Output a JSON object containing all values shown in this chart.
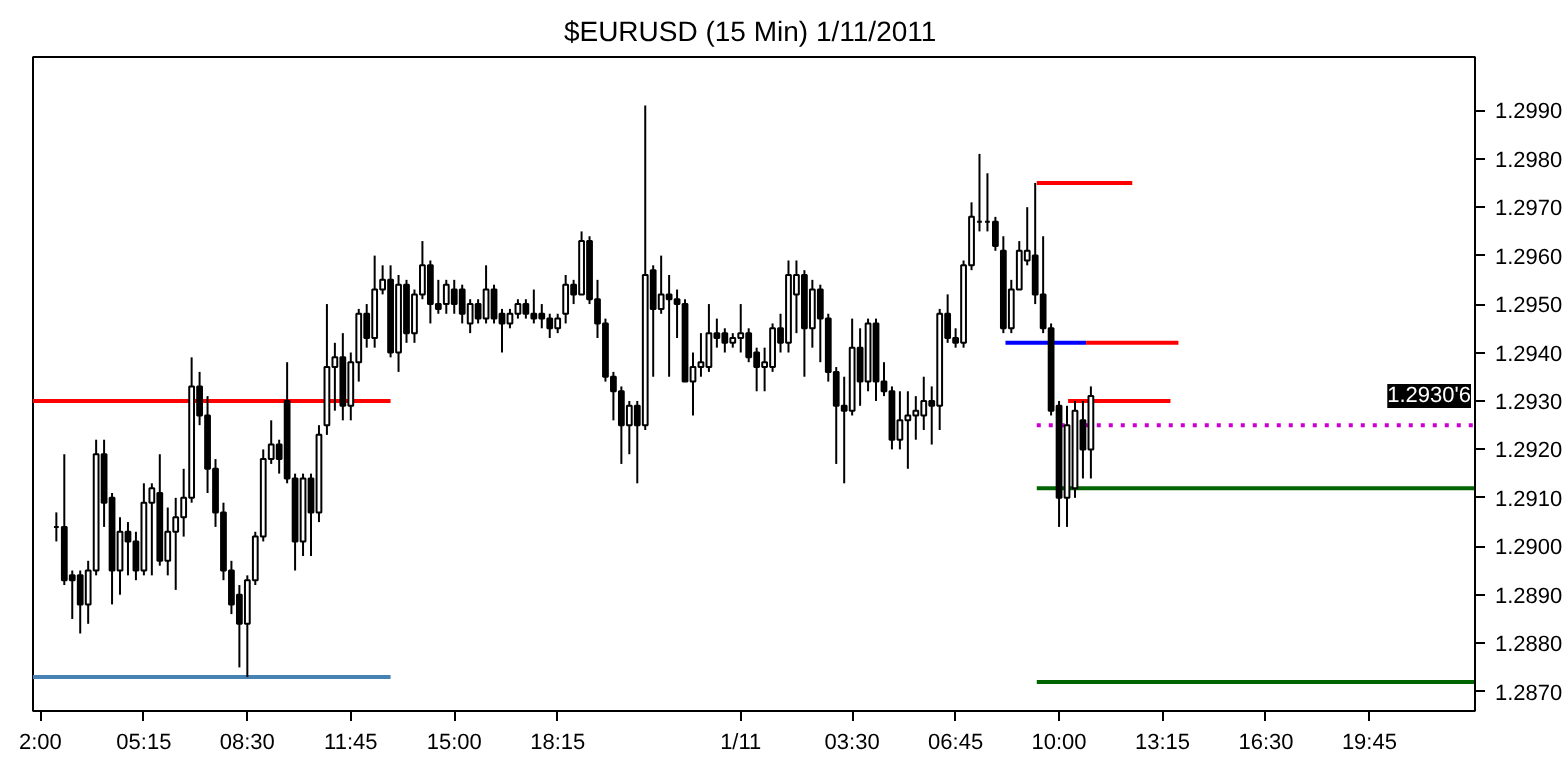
{
  "chart_data": {
    "type": "candlestick",
    "title": "$EURUSD (15 Min)  1/11/2011",
    "xlim": [
      "2011-01-10T01:46",
      "2011-01-11T23:04"
    ],
    "ylim": [
      1.2866,
      1.3001
    ],
    "xticks": [
      {
        "value": "2011-01-10T02:00",
        "label": "2:00"
      },
      {
        "value": "2011-01-10T05:15",
        "label": "05:15"
      },
      {
        "value": "2011-01-10T08:30",
        "label": "08:30"
      },
      {
        "value": "2011-01-10T11:45",
        "label": "11:45"
      },
      {
        "value": "2011-01-10T15:00",
        "label": "15:00"
      },
      {
        "value": "2011-01-10T18:15",
        "label": "18:15"
      },
      {
        "value": "2011-01-11T00:00",
        "label": "1/11"
      },
      {
        "value": "2011-01-11T03:30",
        "label": "03:30"
      },
      {
        "value": "2011-01-11T06:45",
        "label": "06:45"
      },
      {
        "value": "2011-01-11T10:00",
        "label": "10:00"
      },
      {
        "value": "2011-01-11T13:15",
        "label": "13:15"
      },
      {
        "value": "2011-01-11T16:30",
        "label": "16:30"
      },
      {
        "value": "2011-01-11T19:45",
        "label": "19:45"
      }
    ],
    "yticks": [
      {
        "value": 1.287,
        "label": "1.2870"
      },
      {
        "value": 1.288,
        "label": "1.2880"
      },
      {
        "value": 1.289,
        "label": "1.2890"
      },
      {
        "value": 1.29,
        "label": "1.2900"
      },
      {
        "value": 1.291,
        "label": "1.2910"
      },
      {
        "value": 1.292,
        "label": "1.2920"
      },
      {
        "value": 1.293,
        "label": "1.2930"
      },
      {
        "value": 1.294,
        "label": "1.2940"
      },
      {
        "value": 1.295,
        "label": "1.2950"
      },
      {
        "value": 1.296,
        "label": "1.2960"
      },
      {
        "value": 1.297,
        "label": "1.2970"
      },
      {
        "value": 1.298,
        "label": "1.2980"
      },
      {
        "value": 1.299,
        "label": "1.2990"
      }
    ],
    "x": [
      "2011-01-10T02:30",
      "2011-01-10T02:45",
      "2011-01-10T03:00",
      "2011-01-10T03:15",
      "2011-01-10T03:30",
      "2011-01-10T03:45",
      "2011-01-10T04:00",
      "2011-01-10T04:15",
      "2011-01-10T04:30",
      "2011-01-10T04:45",
      "2011-01-10T05:00",
      "2011-01-10T05:15",
      "2011-01-10T05:30",
      "2011-01-10T05:45",
      "2011-01-10T06:00",
      "2011-01-10T06:15",
      "2011-01-10T06:30",
      "2011-01-10T06:45",
      "2011-01-10T07:00",
      "2011-01-10T07:15",
      "2011-01-10T07:30",
      "2011-01-10T07:45",
      "2011-01-10T08:00",
      "2011-01-10T08:15",
      "2011-01-10T08:30",
      "2011-01-10T08:45",
      "2011-01-10T09:00",
      "2011-01-10T09:15",
      "2011-01-10T09:30",
      "2011-01-10T09:45",
      "2011-01-10T10:00",
      "2011-01-10T10:15",
      "2011-01-10T10:30",
      "2011-01-10T10:45",
      "2011-01-10T11:00",
      "2011-01-10T11:15",
      "2011-01-10T11:30",
      "2011-01-10T11:45",
      "2011-01-10T12:00",
      "2011-01-10T12:15",
      "2011-01-10T12:30",
      "2011-01-10T12:45",
      "2011-01-10T13:00",
      "2011-01-10T13:15",
      "2011-01-10T13:30",
      "2011-01-10T13:45",
      "2011-01-10T14:00",
      "2011-01-10T14:15",
      "2011-01-10T14:30",
      "2011-01-10T14:45",
      "2011-01-10T15:00",
      "2011-01-10T15:15",
      "2011-01-10T15:30",
      "2011-01-10T15:45",
      "2011-01-10T16:00",
      "2011-01-10T16:15",
      "2011-01-10T16:30",
      "2011-01-10T16:45",
      "2011-01-10T17:00",
      "2011-01-10T17:15",
      "2011-01-10T17:30",
      "2011-01-10T17:45",
      "2011-01-10T18:00",
      "2011-01-10T18:15",
      "2011-01-10T18:30",
      "2011-01-10T18:45",
      "2011-01-10T19:00",
      "2011-01-10T19:15",
      "2011-01-10T19:30",
      "2011-01-10T19:45",
      "2011-01-10T20:00",
      "2011-01-10T20:15",
      "2011-01-10T20:30",
      "2011-01-10T20:45",
      "2011-01-10T21:00",
      "2011-01-10T21:15",
      "2011-01-10T21:30",
      "2011-01-10T21:45",
      "2011-01-10T22:00",
      "2011-01-10T22:15",
      "2011-01-10T22:30",
      "2011-01-10T22:45",
      "2011-01-10T23:00",
      "2011-01-10T23:15",
      "2011-01-10T23:30",
      "2011-01-10T23:45",
      "2011-01-11T00:00",
      "2011-01-11T00:15",
      "2011-01-11T00:30",
      "2011-01-11T00:45",
      "2011-01-11T01:00",
      "2011-01-11T01:15",
      "2011-01-11T01:30",
      "2011-01-11T01:45",
      "2011-01-11T02:00",
      "2011-01-11T02:15",
      "2011-01-11T02:30",
      "2011-01-11T02:45",
      "2011-01-11T03:00",
      "2011-01-11T03:15",
      "2011-01-11T03:30",
      "2011-01-11T03:45",
      "2011-01-11T04:00",
      "2011-01-11T04:15",
      "2011-01-11T04:30",
      "2011-01-11T04:45",
      "2011-01-11T05:00",
      "2011-01-11T05:15",
      "2011-01-11T05:30",
      "2011-01-11T05:45",
      "2011-01-11T06:00",
      "2011-01-11T06:15",
      "2011-01-11T06:30",
      "2011-01-11T06:45",
      "2011-01-11T07:00",
      "2011-01-11T07:15",
      "2011-01-11T07:30",
      "2011-01-11T07:45",
      "2011-01-11T08:00",
      "2011-01-11T08:15",
      "2011-01-11T08:30",
      "2011-01-11T08:45",
      "2011-01-11T09:00",
      "2011-01-11T09:15",
      "2011-01-11T09:30",
      "2011-01-11T09:45",
      "2011-01-11T10:00",
      "2011-01-11T10:15",
      "2011-01-11T10:30",
      "2011-01-11T10:45",
      "2011-01-11T11:00"
    ],
    "ohlc": [
      [
        1.2904,
        1.2907,
        1.2901,
        1.2904
      ],
      [
        1.2904,
        1.2919,
        1.2892,
        1.2893
      ],
      [
        1.2894,
        1.2895,
        1.2885,
        1.2893
      ],
      [
        1.2894,
        1.2895,
        1.2882,
        1.2888
      ],
      [
        1.2888,
        1.2897,
        1.2884,
        1.2895
      ],
      [
        1.2895,
        1.2922,
        1.2894,
        1.2919
      ],
      [
        1.2919,
        1.2922,
        1.2904,
        1.2909
      ],
      [
        1.291,
        1.2911,
        1.2888,
        1.2895
      ],
      [
        1.2895,
        1.2906,
        1.289,
        1.2903
      ],
      [
        1.2903,
        1.2905,
        1.2894,
        1.2901
      ],
      [
        1.2901,
        1.2903,
        1.2893,
        1.2895
      ],
      [
        1.2895,
        1.2913,
        1.2894,
        1.2909
      ],
      [
        1.2909,
        1.2913,
        1.2894,
        1.2912
      ],
      [
        1.2911,
        1.2919,
        1.2896,
        1.2897
      ],
      [
        1.2897,
        1.2908,
        1.2894,
        1.2903
      ],
      [
        1.2903,
        1.291,
        1.2891,
        1.2906
      ],
      [
        1.2906,
        1.2916,
        1.2902,
        1.291
      ],
      [
        1.291,
        1.2939,
        1.2909,
        1.2933
      ],
      [
        1.2933,
        1.2936,
        1.2925,
        1.2927
      ],
      [
        1.2927,
        1.2931,
        1.2911,
        1.2916
      ],
      [
        1.2916,
        1.2918,
        1.2904,
        1.2907
      ],
      [
        1.2907,
        1.2909,
        1.2893,
        1.2895
      ],
      [
        1.2895,
        1.2897,
        1.2886,
        1.2888
      ],
      [
        1.289,
        1.2892,
        1.2875,
        1.2884
      ],
      [
        1.2884,
        1.2894,
        1.2873,
        1.2893
      ],
      [
        1.2893,
        1.2903,
        1.2892,
        1.2902
      ],
      [
        1.2902,
        1.292,
        1.2901,
        1.2918
      ],
      [
        1.2918,
        1.2926,
        1.2917,
        1.2921
      ],
      [
        1.2921,
        1.2922,
        1.2915,
        1.2918
      ],
      [
        1.293,
        1.2938,
        1.2913,
        1.2914
      ],
      [
        1.2914,
        1.2915,
        1.2895,
        1.2901
      ],
      [
        1.2901,
        1.2915,
        1.2898,
        1.2914
      ],
      [
        1.2914,
        1.2915,
        1.2898,
        1.2907
      ],
      [
        1.2907,
        1.2925,
        1.2905,
        1.2923
      ],
      [
        1.2925,
        1.295,
        1.2923,
        1.2937
      ],
      [
        1.2937,
        1.2942,
        1.2928,
        1.2939
      ],
      [
        1.2939,
        1.2944,
        1.2926,
        1.2929
      ],
      [
        1.2929,
        1.294,
        1.2926,
        1.2938
      ],
      [
        1.2938,
        1.2949,
        1.2934,
        1.2948
      ],
      [
        1.2948,
        1.295,
        1.2941,
        1.2943
      ],
      [
        1.2943,
        1.296,
        1.2941,
        1.2953
      ],
      [
        1.2953,
        1.2958,
        1.2952,
        1.2955
      ],
      [
        1.2955,
        1.2958,
        1.2939,
        1.294
      ],
      [
        1.294,
        1.2956,
        1.2936,
        1.2954
      ],
      [
        1.2954,
        1.2955,
        1.2942,
        1.2944
      ],
      [
        1.2944,
        1.2953,
        1.2942,
        1.2952
      ],
      [
        1.2952,
        1.2963,
        1.2951,
        1.2958
      ],
      [
        1.2958,
        1.2959,
        1.2946,
        1.295
      ],
      [
        1.295,
        1.2955,
        1.2948,
        1.2949
      ],
      [
        1.295,
        1.2955,
        1.2948,
        1.2954
      ],
      [
        1.2953,
        1.2955,
        1.2948,
        1.295
      ],
      [
        1.2953,
        1.2954,
        1.2946,
        1.2948
      ],
      [
        1.2946,
        1.2951,
        1.2944,
        1.295
      ],
      [
        1.295,
        1.2951,
        1.2946,
        1.2947
      ],
      [
        1.2947,
        1.2958,
        1.2946,
        1.2953
      ],
      [
        1.2953,
        1.2954,
        1.2946,
        1.2947
      ],
      [
        1.2948,
        1.2949,
        1.294,
        1.2946
      ],
      [
        1.2946,
        1.2949,
        1.2945,
        1.2948
      ],
      [
        1.2948,
        1.2951,
        1.2947,
        1.295
      ],
      [
        1.295,
        1.2951,
        1.2947,
        1.2948
      ],
      [
        1.2948,
        1.2953,
        1.2946,
        1.2947
      ],
      [
        1.2948,
        1.295,
        1.2945,
        1.2947
      ],
      [
        1.2947,
        1.2948,
        1.2943,
        1.2945
      ],
      [
        1.2945,
        1.2948,
        1.2944,
        1.2947
      ],
      [
        1.2948,
        1.2956,
        1.2946,
        1.2954
      ],
      [
        1.2954,
        1.2955,
        1.295,
        1.2952
      ],
      [
        1.2952,
        1.2965,
        1.2952,
        1.2963
      ],
      [
        1.2963,
        1.2964,
        1.295,
        1.2951
      ],
      [
        1.2951,
        1.2955,
        1.2943,
        1.2946
      ],
      [
        1.2946,
        1.2947,
        1.2934,
        1.2935
      ],
      [
        1.2935,
        1.2936,
        1.2926,
        1.2932
      ],
      [
        1.2932,
        1.2933,
        1.2917,
        1.2925
      ],
      [
        1.2925,
        1.293,
        1.2919,
        1.2929
      ],
      [
        1.2929,
        1.293,
        1.2913,
        1.2925
      ],
      [
        1.2925,
        1.2991,
        1.2924,
        1.2956
      ],
      [
        1.2957,
        1.2958,
        1.2935,
        1.2949
      ],
      [
        1.2949,
        1.296,
        1.2948,
        1.2952
      ],
      [
        1.2952,
        1.2956,
        1.2935,
        1.2951
      ],
      [
        1.2951,
        1.2953,
        1.2943,
        1.295
      ],
      [
        1.295,
        1.2951,
        1.2934,
        1.2934
      ],
      [
        1.2934,
        1.294,
        1.2927,
        1.2937
      ],
      [
        1.2937,
        1.2944,
        1.2935,
        1.2938
      ],
      [
        1.2937,
        1.295,
        1.2936,
        1.2944
      ],
      [
        1.2944,
        1.2947,
        1.2941,
        1.2943
      ],
      [
        1.2944,
        1.2945,
        1.294,
        1.2942
      ],
      [
        1.2942,
        1.2944,
        1.2941,
        1.2943
      ],
      [
        1.2943,
        1.295,
        1.294,
        1.2944
      ],
      [
        1.2944,
        1.2945,
        1.2938,
        1.2939
      ],
      [
        1.294,
        1.2941,
        1.2932,
        1.2937
      ],
      [
        1.2937,
        1.2941,
        1.2932,
        1.2938
      ],
      [
        1.2937,
        1.2946,
        1.2936,
        1.2945
      ],
      [
        1.2945,
        1.2948,
        1.294,
        1.2942
      ],
      [
        1.2942,
        1.2959,
        1.294,
        1.2956
      ],
      [
        1.2952,
        1.2959,
        1.2944,
        1.2956
      ],
      [
        1.2956,
        1.2957,
        1.2935,
        1.2945
      ],
      [
        1.2945,
        1.2955,
        1.2941,
        1.2953
      ],
      [
        1.2953,
        1.2954,
        1.2938,
        1.2947
      ],
      [
        1.2947,
        1.2948,
        1.2934,
        1.2936
      ],
      [
        1.2936,
        1.2937,
        1.2917,
        1.2929
      ],
      [
        1.2929,
        1.2935,
        1.2913,
        1.2928
      ],
      [
        1.2928,
        1.2947,
        1.2927,
        1.2941
      ],
      [
        1.2941,
        1.2945,
        1.2929,
        1.2934
      ],
      [
        1.2934,
        1.2947,
        1.2932,
        1.2946
      ],
      [
        1.2946,
        1.2947,
        1.293,
        1.2934
      ],
      [
        1.2934,
        1.2938,
        1.2931,
        1.2932
      ],
      [
        1.2932,
        1.2933,
        1.292,
        1.2922
      ],
      [
        1.2922,
        1.2932,
        1.292,
        1.2926
      ],
      [
        1.2926,
        1.2932,
        1.2916,
        1.2927
      ],
      [
        1.2927,
        1.2931,
        1.2922,
        1.2928
      ],
      [
        1.2927,
        1.2935,
        1.2924,
        1.293
      ],
      [
        1.293,
        1.2933,
        1.2921,
        1.2929
      ],
      [
        1.2929,
        1.2949,
        1.2924,
        1.2948
      ],
      [
        1.2948,
        1.2952,
        1.2942,
        1.2943
      ],
      [
        1.2943,
        1.2945,
        1.2941,
        1.2942
      ],
      [
        1.2942,
        1.2959,
        1.2941,
        1.2958
      ],
      [
        1.2958,
        1.2971,
        1.2957,
        1.2968
      ],
      [
        1.2967,
        1.2981,
        1.2965,
        1.2967
      ],
      [
        1.2967,
        1.2977,
        1.2965,
        1.2967
      ],
      [
        1.2967,
        1.2968,
        1.2961,
        1.2962
      ],
      [
        1.2961,
        1.2964,
        1.2944,
        1.2945
      ],
      [
        1.2945,
        1.2955,
        1.2944,
        1.2953
      ],
      [
        1.2953,
        1.2963,
        1.2953,
        1.2961
      ],
      [
        1.2959,
        1.297,
        1.2958,
        1.2961
      ],
      [
        1.296,
        1.2975,
        1.295,
        1.2952
      ],
      [
        1.2952,
        1.2964,
        1.2944,
        1.2945
      ],
      [
        1.2945,
        1.2946,
        1.2927,
        1.2928
      ],
      [
        1.2929,
        1.293,
        1.2904,
        1.291
      ],
      [
        1.291,
        1.2929,
        1.2904,
        1.2925
      ],
      [
        1.2912,
        1.293,
        1.291,
        1.2928
      ],
      [
        1.2926,
        1.293,
        1.2914,
        1.292
      ],
      [
        1.292,
        1.2933,
        1.2914,
        1.2931
      ]
    ],
    "series": [
      {
        "type": "line",
        "color": "#ff0000",
        "x": [
          "2011-01-10T01:46",
          "2011-01-10T13:00"
        ],
        "values": [
          1.293,
          1.293
        ]
      },
      {
        "type": "line",
        "color": "#4682b4",
        "x": [
          "2011-01-10T01:46",
          "2011-01-10T13:00"
        ],
        "values": [
          1.2873,
          1.2873
        ]
      },
      {
        "type": "line",
        "color": "#ff0000",
        "x": [
          "2011-01-11T09:18",
          "2011-01-11T12:18"
        ],
        "values": [
          1.2975,
          1.2975
        ]
      },
      {
        "type": "line",
        "color": "#0000ff",
        "x": [
          "2011-01-11T08:19",
          "2011-01-11T10:51"
        ],
        "values": [
          1.2942,
          1.2942
        ]
      },
      {
        "type": "line",
        "color": "#ff0000",
        "x": [
          "2011-01-11T10:51",
          "2011-01-11T13:45"
        ],
        "values": [
          1.2942,
          1.2942
        ]
      },
      {
        "type": "line",
        "color": "#ff0000",
        "x": [
          "2011-01-11T10:17",
          "2011-01-11T13:30"
        ],
        "values": [
          1.293,
          1.293
        ]
      },
      {
        "type": "line",
        "color": "#cc00cc",
        "line_style": "dotted",
        "x": [
          "2011-01-11T09:18",
          "2011-01-11T23:04"
        ],
        "values": [
          1.2925,
          1.2925
        ]
      },
      {
        "type": "line",
        "color": "#006400",
        "x": [
          "2011-01-11T09:18",
          "2011-01-11T23:04"
        ],
        "values": [
          1.2912,
          1.2912
        ]
      },
      {
        "type": "line",
        "color": "#006400",
        "x": [
          "2011-01-11T09:18",
          "2011-01-11T23:04"
        ],
        "values": [
          1.2872,
          1.2872
        ]
      }
    ],
    "annotations": [
      "1.2930'6"
    ]
  }
}
